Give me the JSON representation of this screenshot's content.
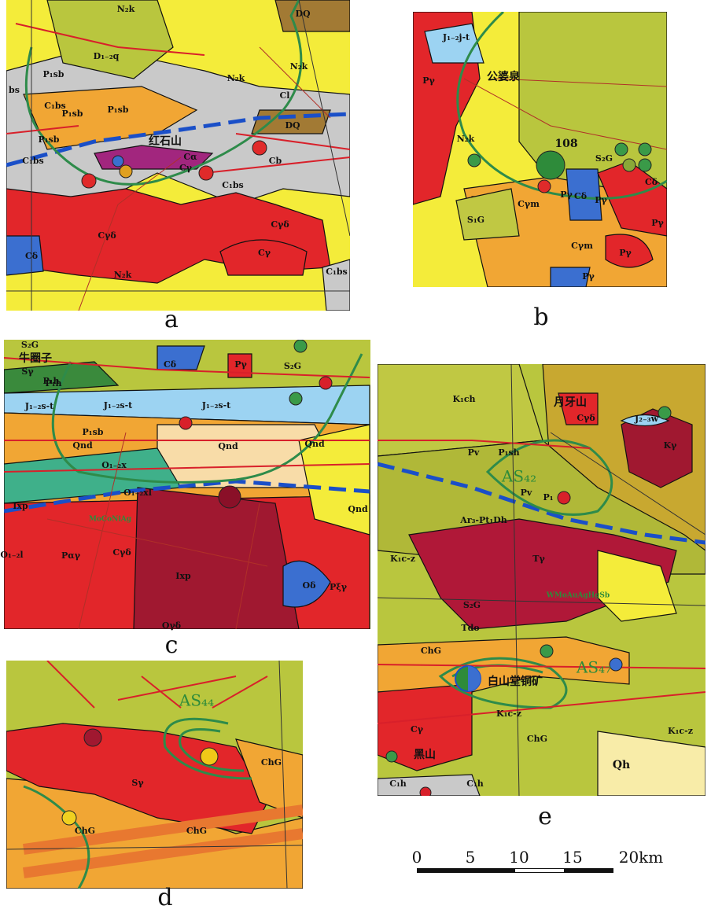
{
  "panels": [
    {
      "label": "a",
      "map_labels": [
        "N₂k",
        "DQ",
        "D₁₋₂q",
        "P₁sb",
        "N₂k",
        "Cl",
        "N₂k",
        "bs",
        "C₁bs",
        "P₁sb",
        "P₁sb",
        "DQ",
        "P₁sb",
        "红石山",
        "C₁bs",
        "Cα",
        "Cγ",
        "Cb",
        "C₁bs",
        "Cγδ",
        "Cγ",
        "Cδ",
        "Cγδ",
        "N₂k",
        "C₁bs"
      ]
    },
    {
      "label": "b",
      "map_labels": [
        "J₁₋₂j-t",
        "公婆泉",
        "Pγ",
        "N₂k",
        "108",
        "S₂G",
        "Pγ",
        "Cδ",
        "Cδ",
        "Cγm",
        "Pγ",
        "S₁G",
        "Cγm",
        "Pγ",
        "Pγ",
        "Pγ"
      ]
    },
    {
      "label": "c",
      "map_labels": [
        "S₂G",
        "牛圈子",
        "Sγ",
        "P₁h",
        "Cδ",
        "Pγ",
        "S₂G",
        "P₁h",
        "J₁₋₂s-t",
        "J₁₋₂s-t",
        "J₁₋₂s-t",
        "P₁sb",
        "Qnd",
        "Qnd",
        "Qnd",
        "O₁₋₂x",
        "O₁₋₂xl",
        "Ixp",
        "MoCoNiAg",
        "Cγδ",
        "Pαγ",
        "Ixp",
        "Oδ",
        "Oγδ",
        "Pξγ",
        "Qnd",
        "O₁₋₂l"
      ]
    },
    {
      "label": "d",
      "map_labels": [
        "AS₄₄",
        "Sγ",
        "ChG",
        "ChG",
        "ChG"
      ]
    },
    {
      "label": "e",
      "map_labels": [
        "K₁ch",
        "月牙山",
        "Cγδ",
        "J₂₋₃w",
        "Kγ",
        "P₁sh",
        "Pv",
        "AS₄₂",
        "Pv",
        "P₁",
        "Ar₃-Pt₁Dh",
        "K₁c-z",
        "Tγ",
        "WMoAuAgHgSb",
        "S₂G",
        "Tdo",
        "ChG",
        "AS₄₇",
        "白山堂铜矿",
        "K₁c-z",
        "Cγ",
        "ChG",
        "K₁c-z",
        "黑山",
        "Qh",
        "C₁h",
        "C₁h"
      ]
    }
  ],
  "scale_bar": {
    "labels": [
      "0",
      "5",
      "10",
      "15",
      "20km"
    ]
  }
}
